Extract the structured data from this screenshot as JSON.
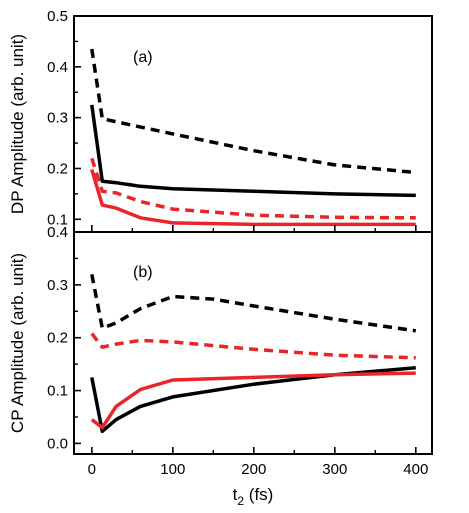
{
  "chart_data": [
    {
      "type": "line",
      "panel_label": "(a)",
      "ylabel": "DP Amplitude (arb. unit)",
      "xlabel": "",
      "xlim": [
        -22,
        420
      ],
      "ylim": [
        0.075,
        0.5
      ],
      "yticks": [
        0.1,
        0.2,
        0.3,
        0.4,
        0.5
      ],
      "ytick_labels": [
        "0.1",
        "0.2",
        "0.3",
        "0.4",
        "0.5"
      ],
      "grid": false,
      "series": [
        {
          "color": "#000000",
          "style": "dashed",
          "x": [
            0,
            13,
            50,
            100,
            200,
            300,
            400
          ],
          "y": [
            0.435,
            0.298,
            0.285,
            0.268,
            0.235,
            0.207,
            0.192
          ]
        },
        {
          "color": "#000000",
          "style": "solid",
          "x": [
            0,
            13,
            30,
            60,
            100,
            200,
            300,
            400
          ],
          "y": [
            0.325,
            0.175,
            0.172,
            0.165,
            0.16,
            0.155,
            0.15,
            0.147
          ]
        },
        {
          "color": "#e8262a",
          "style": "dashed",
          "x": [
            0,
            13,
            30,
            60,
            100,
            200,
            300,
            400
          ],
          "y": [
            0.22,
            0.155,
            0.152,
            0.135,
            0.12,
            0.108,
            0.104,
            0.103
          ]
        },
        {
          "color": "#e8262a",
          "style": "solid",
          "x": [
            0,
            13,
            30,
            60,
            100,
            200,
            300,
            400
          ],
          "y": [
            0.198,
            0.128,
            0.122,
            0.103,
            0.093,
            0.09,
            0.09,
            0.09
          ]
        }
      ]
    },
    {
      "type": "line",
      "panel_label": "(b)",
      "ylabel": "CP Amplitude (arb. unit)",
      "xlabel": "t2 (fs)",
      "xlabel_main": "t",
      "xlabel_sub": "2",
      "xlabel_unit": " (fs)",
      "xlim": [
        -22,
        420
      ],
      "ylim": [
        -0.02,
        0.4
      ],
      "xticks": [
        0,
        100,
        200,
        300,
        400
      ],
      "xtick_labels": [
        "0",
        "100",
        "200",
        "300",
        "400"
      ],
      "yticks": [
        0.0,
        0.1,
        0.2,
        0.3,
        0.4
      ],
      "ytick_labels": [
        "0.0",
        "0.1",
        "0.2",
        "0.3",
        "0.4"
      ],
      "grid": false,
      "series": [
        {
          "color": "#000000",
          "style": "dashed",
          "x": [
            0,
            13,
            30,
            60,
            100,
            150,
            200,
            300,
            400
          ],
          "y": [
            0.32,
            0.218,
            0.228,
            0.255,
            0.278,
            0.273,
            0.26,
            0.235,
            0.213
          ]
        },
        {
          "color": "#e8262a",
          "style": "dashed",
          "x": [
            0,
            13,
            30,
            60,
            100,
            200,
            300,
            400
          ],
          "y": [
            0.208,
            0.182,
            0.188,
            0.195,
            0.192,
            0.178,
            0.167,
            0.162
          ]
        },
        {
          "color": "#000000",
          "style": "solid",
          "x": [
            0,
            13,
            30,
            60,
            100,
            200,
            300,
            400
          ],
          "y": [
            0.125,
            0.023,
            0.045,
            0.07,
            0.088,
            0.112,
            0.13,
            0.143
          ]
        },
        {
          "color": "#e8262a",
          "style": "solid",
          "x": [
            0,
            13,
            30,
            60,
            100,
            200,
            300,
            400
          ],
          "y": [
            0.045,
            0.03,
            0.07,
            0.102,
            0.12,
            0.125,
            0.13,
            0.133
          ]
        }
      ]
    }
  ]
}
